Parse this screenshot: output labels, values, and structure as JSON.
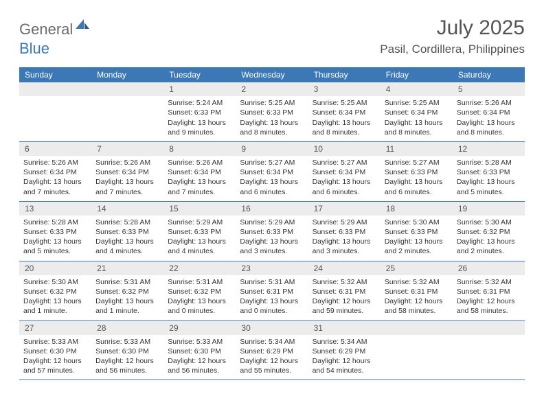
{
  "brand": {
    "word1": "General",
    "word2": "Blue",
    "word1_color": "#6b6b6b",
    "word2_color": "#3b78b5"
  },
  "title": "July 2025",
  "location": "Pasil, Cordillera, Philippines",
  "colors": {
    "header_bg": "#3b78b5",
    "header_text": "#ffffff",
    "daynum_bg": "#ececec",
    "body_text": "#333333",
    "rule": "#3b78b5",
    "page_bg": "#ffffff"
  },
  "dayNames": [
    "Sunday",
    "Monday",
    "Tuesday",
    "Wednesday",
    "Thursday",
    "Friday",
    "Saturday"
  ],
  "weeks": [
    [
      null,
      null,
      {
        "n": "1",
        "sr": "Sunrise: 5:24 AM",
        "ss": "Sunset: 6:33 PM",
        "dl": "Daylight: 13 hours and 9 minutes."
      },
      {
        "n": "2",
        "sr": "Sunrise: 5:25 AM",
        "ss": "Sunset: 6:33 PM",
        "dl": "Daylight: 13 hours and 8 minutes."
      },
      {
        "n": "3",
        "sr": "Sunrise: 5:25 AM",
        "ss": "Sunset: 6:34 PM",
        "dl": "Daylight: 13 hours and 8 minutes."
      },
      {
        "n": "4",
        "sr": "Sunrise: 5:25 AM",
        "ss": "Sunset: 6:34 PM",
        "dl": "Daylight: 13 hours and 8 minutes."
      },
      {
        "n": "5",
        "sr": "Sunrise: 5:26 AM",
        "ss": "Sunset: 6:34 PM",
        "dl": "Daylight: 13 hours and 8 minutes."
      }
    ],
    [
      {
        "n": "6",
        "sr": "Sunrise: 5:26 AM",
        "ss": "Sunset: 6:34 PM",
        "dl": "Daylight: 13 hours and 7 minutes."
      },
      {
        "n": "7",
        "sr": "Sunrise: 5:26 AM",
        "ss": "Sunset: 6:34 PM",
        "dl": "Daylight: 13 hours and 7 minutes."
      },
      {
        "n": "8",
        "sr": "Sunrise: 5:26 AM",
        "ss": "Sunset: 6:34 PM",
        "dl": "Daylight: 13 hours and 7 minutes."
      },
      {
        "n": "9",
        "sr": "Sunrise: 5:27 AM",
        "ss": "Sunset: 6:34 PM",
        "dl": "Daylight: 13 hours and 6 minutes."
      },
      {
        "n": "10",
        "sr": "Sunrise: 5:27 AM",
        "ss": "Sunset: 6:34 PM",
        "dl": "Daylight: 13 hours and 6 minutes."
      },
      {
        "n": "11",
        "sr": "Sunrise: 5:27 AM",
        "ss": "Sunset: 6:33 PM",
        "dl": "Daylight: 13 hours and 6 minutes."
      },
      {
        "n": "12",
        "sr": "Sunrise: 5:28 AM",
        "ss": "Sunset: 6:33 PM",
        "dl": "Daylight: 13 hours and 5 minutes."
      }
    ],
    [
      {
        "n": "13",
        "sr": "Sunrise: 5:28 AM",
        "ss": "Sunset: 6:33 PM",
        "dl": "Daylight: 13 hours and 5 minutes."
      },
      {
        "n": "14",
        "sr": "Sunrise: 5:28 AM",
        "ss": "Sunset: 6:33 PM",
        "dl": "Daylight: 13 hours and 4 minutes."
      },
      {
        "n": "15",
        "sr": "Sunrise: 5:29 AM",
        "ss": "Sunset: 6:33 PM",
        "dl": "Daylight: 13 hours and 4 minutes."
      },
      {
        "n": "16",
        "sr": "Sunrise: 5:29 AM",
        "ss": "Sunset: 6:33 PM",
        "dl": "Daylight: 13 hours and 3 minutes."
      },
      {
        "n": "17",
        "sr": "Sunrise: 5:29 AM",
        "ss": "Sunset: 6:33 PM",
        "dl": "Daylight: 13 hours and 3 minutes."
      },
      {
        "n": "18",
        "sr": "Sunrise: 5:30 AM",
        "ss": "Sunset: 6:33 PM",
        "dl": "Daylight: 13 hours and 2 minutes."
      },
      {
        "n": "19",
        "sr": "Sunrise: 5:30 AM",
        "ss": "Sunset: 6:32 PM",
        "dl": "Daylight: 13 hours and 2 minutes."
      }
    ],
    [
      {
        "n": "20",
        "sr": "Sunrise: 5:30 AM",
        "ss": "Sunset: 6:32 PM",
        "dl": "Daylight: 13 hours and 1 minute."
      },
      {
        "n": "21",
        "sr": "Sunrise: 5:31 AM",
        "ss": "Sunset: 6:32 PM",
        "dl": "Daylight: 13 hours and 1 minute."
      },
      {
        "n": "22",
        "sr": "Sunrise: 5:31 AM",
        "ss": "Sunset: 6:32 PM",
        "dl": "Daylight: 13 hours and 0 minutes."
      },
      {
        "n": "23",
        "sr": "Sunrise: 5:31 AM",
        "ss": "Sunset: 6:31 PM",
        "dl": "Daylight: 13 hours and 0 minutes."
      },
      {
        "n": "24",
        "sr": "Sunrise: 5:32 AM",
        "ss": "Sunset: 6:31 PM",
        "dl": "Daylight: 12 hours and 59 minutes."
      },
      {
        "n": "25",
        "sr": "Sunrise: 5:32 AM",
        "ss": "Sunset: 6:31 PM",
        "dl": "Daylight: 12 hours and 58 minutes."
      },
      {
        "n": "26",
        "sr": "Sunrise: 5:32 AM",
        "ss": "Sunset: 6:31 PM",
        "dl": "Daylight: 12 hours and 58 minutes."
      }
    ],
    [
      {
        "n": "27",
        "sr": "Sunrise: 5:33 AM",
        "ss": "Sunset: 6:30 PM",
        "dl": "Daylight: 12 hours and 57 minutes."
      },
      {
        "n": "28",
        "sr": "Sunrise: 5:33 AM",
        "ss": "Sunset: 6:30 PM",
        "dl": "Daylight: 12 hours and 56 minutes."
      },
      {
        "n": "29",
        "sr": "Sunrise: 5:33 AM",
        "ss": "Sunset: 6:30 PM",
        "dl": "Daylight: 12 hours and 56 minutes."
      },
      {
        "n": "30",
        "sr": "Sunrise: 5:34 AM",
        "ss": "Sunset: 6:29 PM",
        "dl": "Daylight: 12 hours and 55 minutes."
      },
      {
        "n": "31",
        "sr": "Sunrise: 5:34 AM",
        "ss": "Sunset: 6:29 PM",
        "dl": "Daylight: 12 hours and 54 minutes."
      },
      null,
      null
    ]
  ]
}
